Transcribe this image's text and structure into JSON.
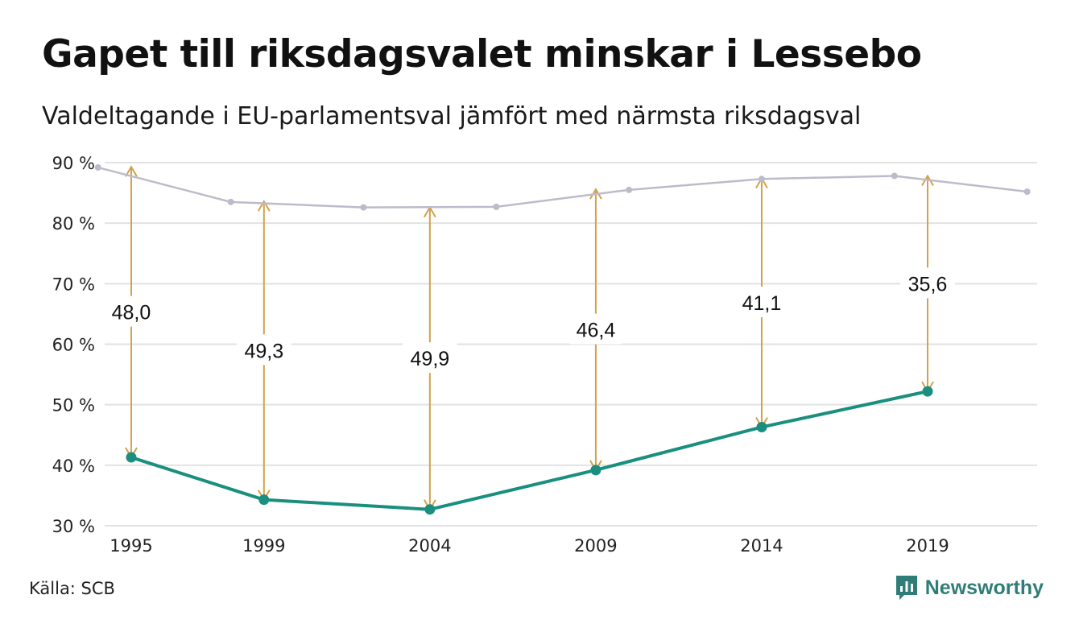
{
  "title": "Gapet till riksdagsvalet minskar i Lessebo",
  "subtitle": "Valdeltagande i EU-parlamentsval jämfört med närmsta riksdagsval",
  "source": "Källa: SCB",
  "brand": "Newsworthy",
  "colors": {
    "eu": "#1a8f7f",
    "riksdag": "#bdbbcb",
    "gap_arrow": "#d2a24c",
    "grid": "#e2e2e2"
  },
  "chart_data": {
    "type": "line",
    "ylim": [
      30,
      90
    ],
    "yticks": [
      30,
      40,
      50,
      60,
      70,
      80,
      90
    ],
    "ytick_labels": [
      "30 %",
      "40 %",
      "50 %",
      "60 %",
      "70 %",
      "80 %",
      "90 %"
    ],
    "xlim": [
      1994.2,
      2022.3
    ],
    "xticks": [
      1995,
      1999,
      2004,
      2009,
      2014,
      2019
    ],
    "xtick_labels": [
      "1995",
      "1999",
      "2004",
      "2009",
      "2014",
      "2019"
    ],
    "series": [
      {
        "x": [
          1994,
          1998,
          2002,
          2006,
          2010,
          2014,
          2018,
          2022
        ],
        "values": [
          89.2,
          83.5,
          82.6,
          82.7,
          85.5,
          87.3,
          87.8,
          85.2
        ]
      },
      {
        "x": [
          1995,
          1999,
          2004,
          2009,
          2014,
          2019
        ],
        "values": [
          41.3,
          34.3,
          32.7,
          39.2,
          46.3,
          52.2
        ]
      }
    ],
    "gaps": [
      {
        "x": 1995,
        "label": "48,0",
        "top": 89.3,
        "bottom": 41.3
      },
      {
        "x": 1999,
        "label": "49,3",
        "top": 83.6,
        "bottom": 34.3
      },
      {
        "x": 2004,
        "label": "49,9",
        "top": 82.6,
        "bottom": 32.7
      },
      {
        "x": 2009,
        "label": "46,4",
        "top": 85.6,
        "bottom": 39.2
      },
      {
        "x": 2014,
        "label": "41,1",
        "top": 87.4,
        "bottom": 46.3
      },
      {
        "x": 2019,
        "label": "35,6",
        "top": 87.8,
        "bottom": 52.2
      }
    ]
  }
}
